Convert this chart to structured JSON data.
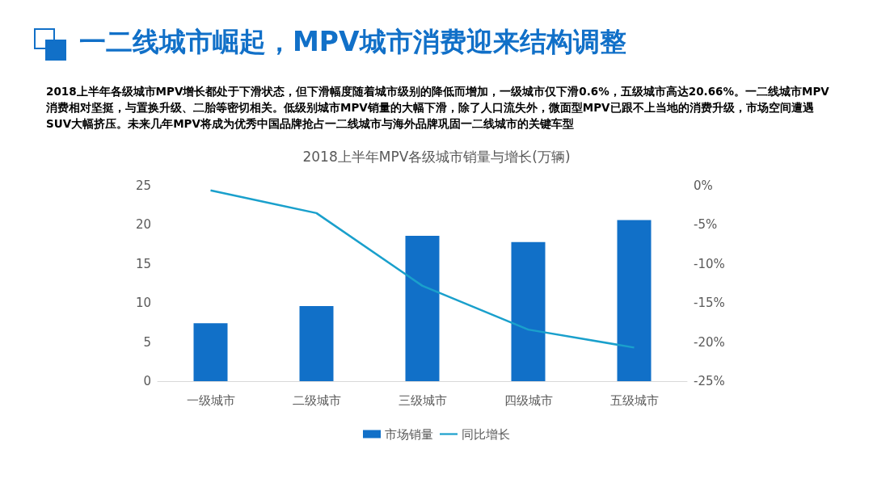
{
  "chart_data": {
    "type": "bar",
    "title": "一二线城市崛起，MPV城市消费迎来结构调整",
    "subtitle": "2018上半年各级城市MPV增长都处于下滑状态，但下滑幅度随着城市级别的降低而增加，一级城市仅下滑0.6%，五级城市高达20.66%。一二线城市MPV消费相对坚挺，与置换升级、二胎等密切相关。低级别城市MPV销量的大幅下滑，除了人口流失外，微面型MPV已跟不上当地的消费升级，市场空间遭遇SUV大幅挤压。未来几年MPV将成为优秀中国品牌抢占一二线城市与海外品牌巩固一二线城市的关键车型",
    "annotations": [
      "2018上半年MPV各级城市销量与增长(万辆)"
    ],
    "categories": [
      "一级城市",
      "二级城市",
      "三级城市",
      "四级城市",
      "五级城市"
    ],
    "series": [
      {
        "name": "市场销量",
        "color": "#1170c8",
        "values": [
          7.4,
          9.6,
          18.6,
          17.8,
          20.6
        ]
      },
      {
        "name": "同比增长",
        "type": "line",
        "axis": "y2",
        "color": "#1aa0cc",
        "values": [
          -0.6,
          -3.5,
          -12.8,
          -18.4,
          -20.7
        ]
      }
    ],
    "ylim": [
      0,
      25
    ],
    "yticks": [
      0,
      5,
      10,
      15,
      20,
      25
    ],
    "y2lim": [
      -25,
      0
    ],
    "y2ticks": [
      {
        "value": -25,
        "label": "-25%"
      },
      {
        "value": -20,
        "label": "-20%"
      },
      {
        "value": -15,
        "label": "-15%"
      },
      {
        "value": -10,
        "label": "-10%"
      },
      {
        "value": -5,
        "label": "-5%"
      },
      {
        "value": 0,
        "label": "0%"
      }
    ],
    "grid": false,
    "legend": "bottom",
    "marker": "none",
    "line_style": "solid"
  }
}
